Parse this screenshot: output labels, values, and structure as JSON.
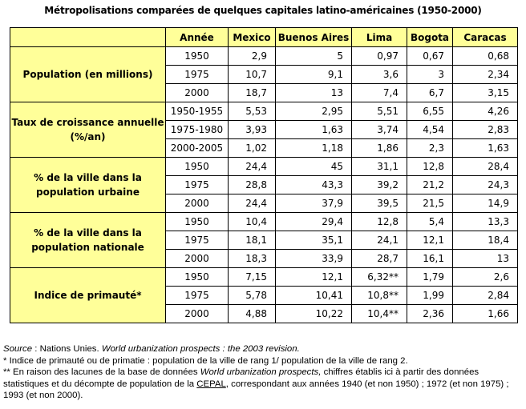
{
  "title": "Métropolisations comparées de quelques capitales latino-américaines (1950-2000)",
  "headers": [
    "",
    "Année",
    "Mexico",
    "Buenos Aires",
    "Lima",
    "Bogota",
    "Caracas"
  ],
  "groups": [
    {
      "label": "Population (en millions)",
      "rows": [
        {
          "year": "1950",
          "vals": [
            "2,9",
            "5",
            "0,97",
            "0,67",
            "0,68"
          ]
        },
        {
          "year": "1975",
          "vals": [
            "10,7",
            "9,1",
            "3,6",
            "3",
            "2,34"
          ]
        },
        {
          "year": "2000",
          "vals": [
            "18,7",
            "13",
            "7,4",
            "6,7",
            "3,15"
          ]
        }
      ]
    },
    {
      "label": "Taux de croissance annuelle (%/an)",
      "rows": [
        {
          "year": "1950-1955",
          "vals": [
            "5,53",
            "2,95",
            "5,51",
            "6,55",
            "4,26"
          ]
        },
        {
          "year": "1975-1980",
          "vals": [
            "3,93",
            "1,63",
            "3,74",
            "4,54",
            "2,83"
          ]
        },
        {
          "year": "2000-2005",
          "vals": [
            "1,02",
            "1,18",
            "1,86",
            "2,3",
            "1,63"
          ]
        }
      ]
    },
    {
      "label": "% de la ville dans la population urbaine",
      "rows": [
        {
          "year": "1950",
          "vals": [
            "24,4",
            "45",
            "31,1",
            "12,8",
            "28,4"
          ]
        },
        {
          "year": "1975",
          "vals": [
            "28,8",
            "43,3",
            "39,2",
            "21,2",
            "24,3"
          ]
        },
        {
          "year": "2000",
          "vals": [
            "24,4",
            "37,9",
            "39,5",
            "21,5",
            "14,9"
          ]
        }
      ]
    },
    {
      "label": "% de la ville dans la population nationale",
      "rows": [
        {
          "year": "1950",
          "vals": [
            "10,4",
            "29,4",
            "12,8",
            "5,4",
            "13,3"
          ]
        },
        {
          "year": "1975",
          "vals": [
            "18,1",
            "35,1",
            "24,1",
            "12,1",
            "18,4"
          ]
        },
        {
          "year": "2000",
          "vals": [
            "18,3",
            "33,9",
            "28,7",
            "16,1",
            "13"
          ]
        }
      ]
    },
    {
      "label": "Indice de primauté*",
      "rows": [
        {
          "year": "1950",
          "vals": [
            "7,15",
            "12,1",
            "6,32**",
            "1,79",
            "2,6"
          ]
        },
        {
          "year": "1975",
          "vals": [
            "5,78",
            "10,41",
            "10,8**",
            "1,99",
            "2,84"
          ]
        },
        {
          "year": "2000",
          "vals": [
            "4,88",
            "10,22",
            "10,4**",
            "2,36",
            "1,66"
          ]
        }
      ]
    }
  ],
  "footnotes": {
    "source_label": "Source",
    "source_sep": " : Nations Unies. ",
    "source_title": "World urbanization prospects : the 2003 revision.",
    "note1": "* Indice de primauté ou de primatie : population de la ville de rang 1/ population de la ville de rang 2.",
    "note2_a": "** En raison des lacunes de la base de données ",
    "note2_title": "World urbanization prospects,",
    "note2_b": " chiffres établis ici à partir des données statistiques et du décompte de population de la ",
    "note2_link": "CEPAL",
    "note2_c": ", correspondant aux années 1940 (et non 1950) ; 1972 (et non 1975) ; 1993 (et non 2000)."
  }
}
